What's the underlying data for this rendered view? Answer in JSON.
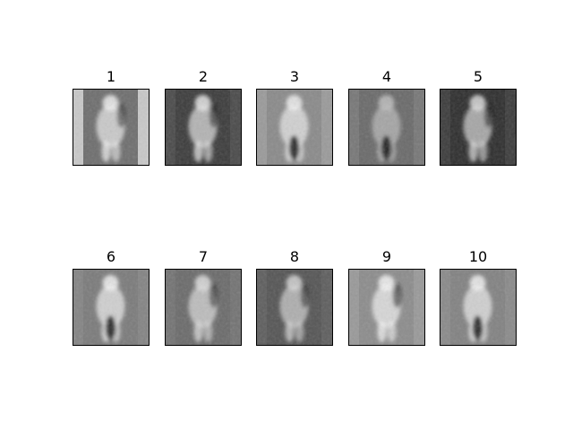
{
  "chart_data": {
    "type": "image-grid",
    "rows": 2,
    "columns": 5,
    "colormap": "gray",
    "axes_visible": false,
    "panels": [
      {
        "title": "1",
        "background": "#6e6e6e",
        "side_band": "#c8c8c8",
        "figure_tone": "#f0f0f0",
        "lower_dark": false,
        "dark_region": "#2a2a2a"
      },
      {
        "title": "2",
        "background": "#3c3c3c",
        "side_band": "#4a4a4a",
        "figure_tone": "#e6e6e6",
        "lower_dark": false,
        "dark_region": "#1a1a1a"
      },
      {
        "title": "3",
        "background": "#8a8a8a",
        "side_band": "#9a9a9a",
        "figure_tone": "#eeeeee",
        "lower_dark": true,
        "dark_region": "#151515"
      },
      {
        "title": "4",
        "background": "#6a6a6a",
        "side_band": "#777777",
        "figure_tone": "#bdbdbd",
        "lower_dark": true,
        "dark_region": "#121212"
      },
      {
        "title": "5",
        "background": "#2e2e2e",
        "side_band": "#3c3c3c",
        "figure_tone": "#dadada",
        "lower_dark": false,
        "dark_region": "#101010"
      },
      {
        "title": "6",
        "background": "#7b7b7b",
        "side_band": "#848484",
        "figure_tone": "#f2f2f2",
        "lower_dark": true,
        "dark_region": "#141414"
      },
      {
        "title": "7",
        "background": "#6b6b6b",
        "side_band": "#737373",
        "figure_tone": "#dedede",
        "lower_dark": false,
        "dark_region": "#2a2a2a"
      },
      {
        "title": "8",
        "background": "#555555",
        "side_band": "#5e5e5e",
        "figure_tone": "#d4d4d4",
        "lower_dark": false,
        "dark_region": "#262626"
      },
      {
        "title": "9",
        "background": "#8c8c8c",
        "side_band": "#999999",
        "figure_tone": "#f5f5f5",
        "lower_dark": false,
        "dark_region": "#1e1e1e"
      },
      {
        "title": "10",
        "background": "#828282",
        "side_band": "#8a8a8a",
        "figure_tone": "#f0f0f0",
        "lower_dark": true,
        "dark_region": "#151515"
      }
    ]
  }
}
